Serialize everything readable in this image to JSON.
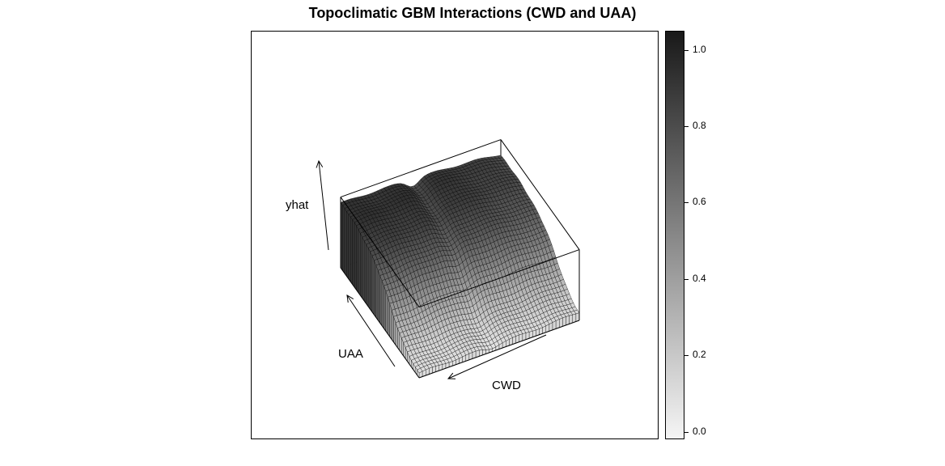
{
  "title": "Topoclimatic GBM Interactions (CWD and UAA)",
  "chart_data": {
    "type": "surface",
    "title": "Topoclimatic GBM Interactions (CWD and UAA)",
    "axes": {
      "x": "CWD",
      "y": "UAA",
      "z": "yhat"
    },
    "colorbar": {
      "range": [
        -0.02,
        1.05
      ],
      "ticks": [
        0.0,
        0.2,
        0.4,
        0.6,
        0.8,
        1.0
      ],
      "tick_labels": [
        "0.0",
        "0.2",
        "0.4",
        "0.6",
        "0.8",
        "1.0"
      ],
      "colormap": "grey (light = low, dark = high)"
    },
    "grid": false,
    "legend": "right"
  }
}
